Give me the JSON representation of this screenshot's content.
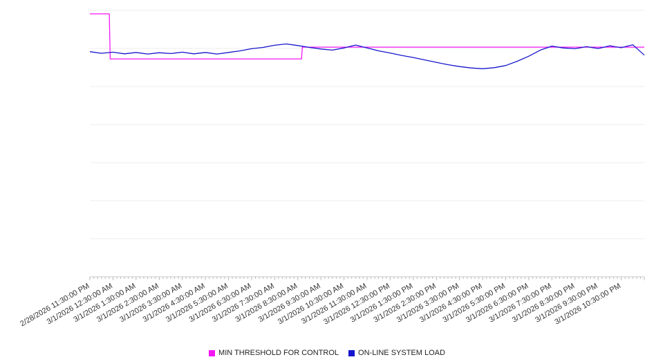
{
  "chart_data": {
    "type": "line",
    "x_labels": [
      "2/28/2026 11:30:00 PM",
      "3/1/2026 12:30:00 AM",
      "3/1/2026 1:30:00 AM",
      "3/1/2026 2:30:00 AM",
      "3/1/2026 3:30:00 AM",
      "3/1/2026 4:30:00 AM",
      "3/1/2026 5:30:00 AM",
      "3/1/2026 6:30:00 AM",
      "3/1/2026 7:30:00 AM",
      "3/1/2026 8:30:00 AM",
      "3/1/2026 9:30:00 AM",
      "3/1/2026 10:30:00 AM",
      "3/1/2026 11:30:00 AM",
      "3/1/2026 12:30:00 PM",
      "3/1/2026 1:30:00 PM",
      "3/1/2026 2:30:00 PM",
      "3/1/2026 3:30:00 PM",
      "3/1/2026 4:30:00 PM",
      "3/1/2026 5:30:00 PM",
      "3/1/2026 6:30:00 PM",
      "3/1/2026 7:30:00 PM",
      "3/1/2026 8:30:00 PM",
      "3/1/2026 9:30:00 PM",
      "3/1/2026 10:30:00 PM"
    ],
    "xlim": [
      0,
      24
    ],
    "ylim": [
      0,
      100
    ],
    "y_divisions": 7,
    "grid": true,
    "legend_position": "bottom",
    "x_tick_minutes": 10,
    "series": [
      {
        "name": "MIN THRESHOLD FOR CONTROL",
        "color": "#f516f5",
        "points": [
          [
            0,
            98.7
          ],
          [
            0.84,
            98.7
          ],
          [
            0.88,
            81.8
          ],
          [
            9.16,
            81.8
          ],
          [
            9.2,
            86.2
          ],
          [
            24,
            86.2
          ]
        ]
      },
      {
        "name": "ON-LINE SYSTEM LOAD",
        "color": "#1515cd",
        "x_start": 0,
        "x_step": 0.5,
        "values": [
          84.5,
          83.9,
          84.3,
          83.7,
          84.2,
          83.6,
          84.1,
          83.8,
          84.3,
          83.7,
          84.2,
          83.6,
          84.2,
          84.8,
          85.6,
          86.1,
          86.9,
          87.4,
          86.8,
          86.1,
          85.5,
          85.1,
          85.9,
          87.0,
          85.9,
          84.8,
          84.0,
          83.1,
          82.3,
          81.4,
          80.5,
          79.6,
          78.9,
          78.4,
          78.1,
          78.5,
          79.3,
          80.9,
          82.8,
          85.1,
          86.6,
          85.9,
          85.6,
          86.4,
          85.7,
          86.7,
          86.0,
          87.1,
          83.2
        ]
      }
    ]
  }
}
